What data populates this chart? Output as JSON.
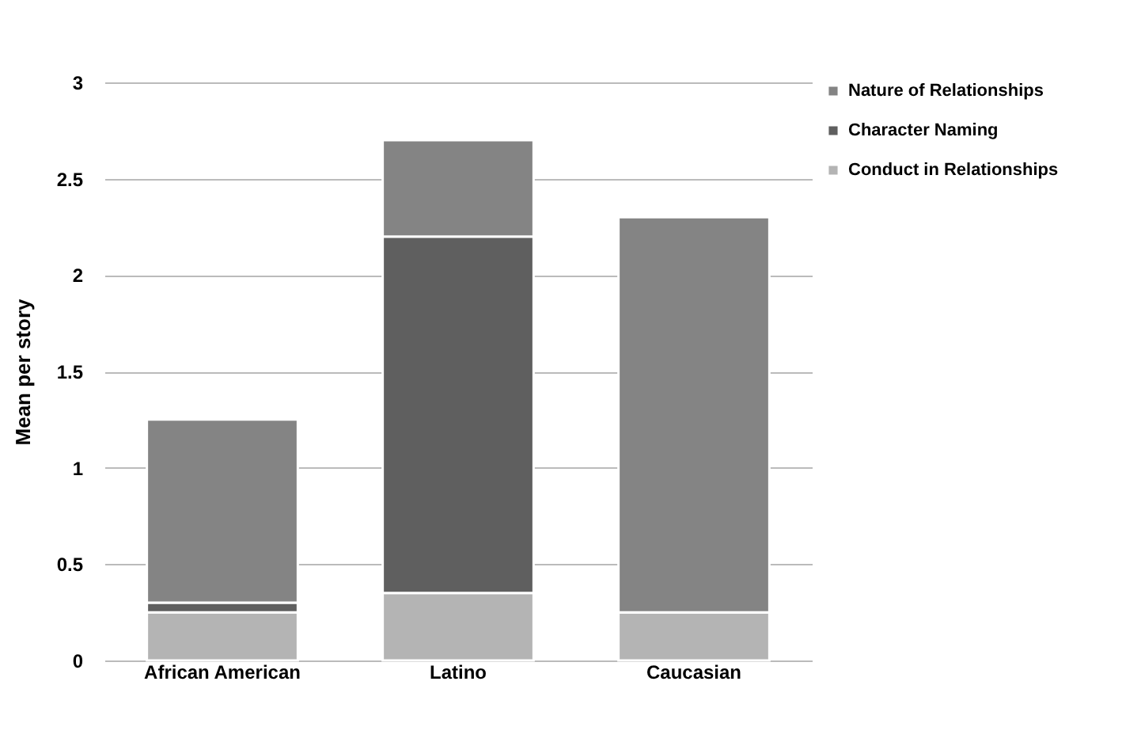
{
  "chart_data": {
    "type": "bar",
    "stacked": true,
    "ylabel": "Mean per story",
    "categories": [
      "African American",
      "Latino",
      "Caucasian"
    ],
    "series": [
      {
        "name": "Conduct in Relationships",
        "color": "#b4b4b4",
        "values": [
          0.25,
          0.35,
          0.25
        ]
      },
      {
        "name": "Character Naming",
        "color": "#5f5f5f",
        "values": [
          0.05,
          1.85,
          0
        ]
      },
      {
        "name": "Nature of Relationships",
        "color": "#848484",
        "values": [
          0.95,
          0.5,
          2.05
        ]
      }
    ],
    "ylim": [
      0,
      3
    ],
    "yticks": [
      0,
      0.5,
      1,
      1.5,
      2,
      2.5,
      3
    ],
    "grid": "y",
    "legend": "right"
  }
}
